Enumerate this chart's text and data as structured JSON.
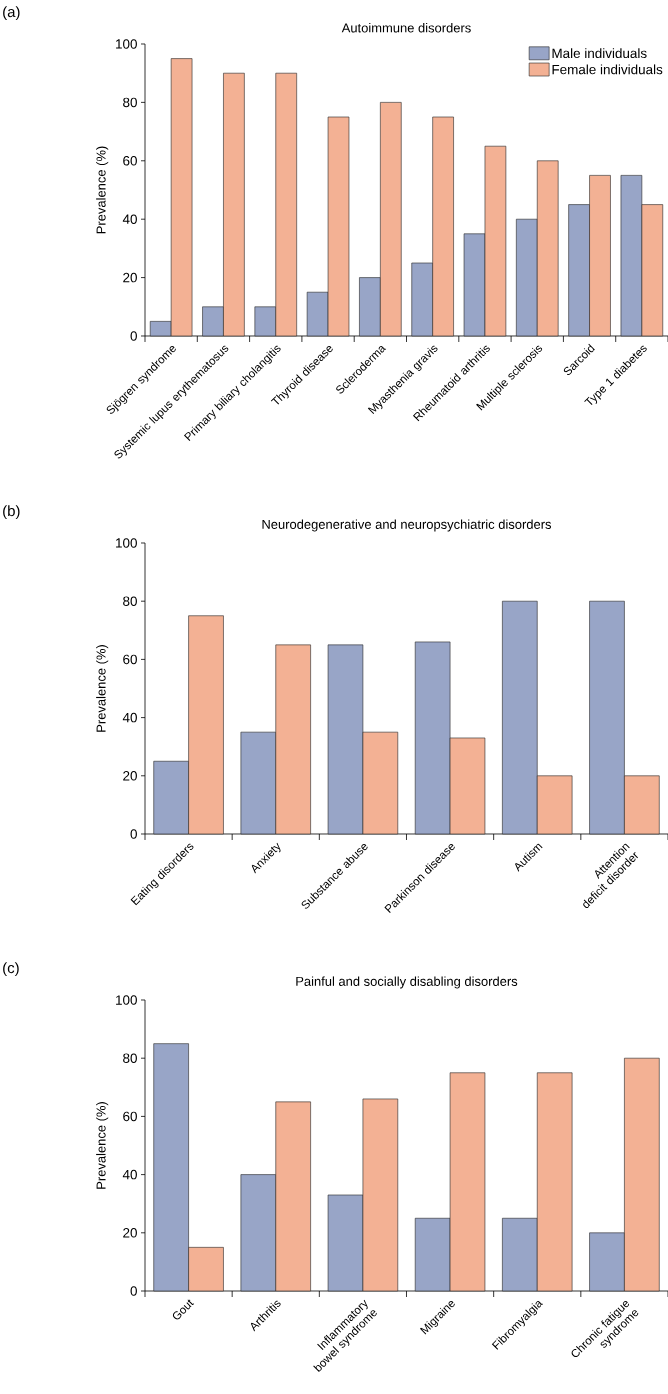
{
  "chart_data": [
    {
      "type": "bar",
      "title": "Autoimmune disorders",
      "ylabel": "Prevalence (%)",
      "annotations": [
        "(a)"
      ],
      "categories": [
        "Sjögren syndrome",
        "Systemic lupus erythematosus",
        "Primary biliary cholangitis",
        "Thyroid disease",
        "Scleroderma",
        "Myasthenia gravis",
        "Rheumatoid arthritis",
        "Multiple sclerosis",
        "Sarcoid",
        "Type 1 diabetes"
      ],
      "series": [
        {
          "name": "Male individuals",
          "color": "#98a5c7",
          "values": [
            5,
            10,
            10,
            15,
            20,
            25,
            35,
            40,
            45,
            55
          ]
        },
        {
          "name": "Female individuals",
          "color": "#f3b194",
          "values": [
            95,
            90,
            90,
            75,
            80,
            75,
            65,
            60,
            55,
            45
          ]
        }
      ],
      "ylim": [
        0,
        100
      ],
      "yticks": [
        0,
        20,
        40,
        60,
        80,
        100
      ],
      "legend": "top right"
    },
    {
      "type": "bar",
      "title": "Neurodegenerative and neuropsychiatric disorders",
      "ylabel": "Prevalence (%)",
      "annotations": [
        "(b)"
      ],
      "categories": [
        "Eating disorders",
        "Anxiety",
        "Substance abuse",
        "Parkinson disease",
        "Autism",
        "Attention deficit disorder"
      ],
      "series": [
        {
          "color": "#98a5c7",
          "values": [
            25,
            35,
            65,
            66,
            80,
            80
          ]
        },
        {
          "color": "#f3b194",
          "values": [
            75,
            65,
            35,
            33,
            20,
            20
          ]
        }
      ],
      "ylim": [
        0,
        100
      ],
      "yticks": [
        0,
        20,
        40,
        60,
        80,
        100
      ]
    },
    {
      "type": "bar",
      "title": "Painful and socially disabling disorders",
      "ylabel": "Prevalence (%)",
      "annotations": [
        "(c)"
      ],
      "categories": [
        "Gout",
        "Arthritis",
        "Inflammatory bowel syndrome",
        "Migraine",
        "Fibromyalgia",
        "Chronic fatigue syndrome"
      ],
      "series": [
        {
          "color": "#98a5c7",
          "values": [
            85,
            40,
            33,
            25,
            25,
            20
          ]
        },
        {
          "color": "#f3b194",
          "values": [
            15,
            65,
            66,
            75,
            75,
            80
          ]
        }
      ],
      "ylim": [
        0,
        100
      ],
      "yticks": [
        0,
        20,
        40,
        60,
        80,
        100
      ]
    }
  ]
}
